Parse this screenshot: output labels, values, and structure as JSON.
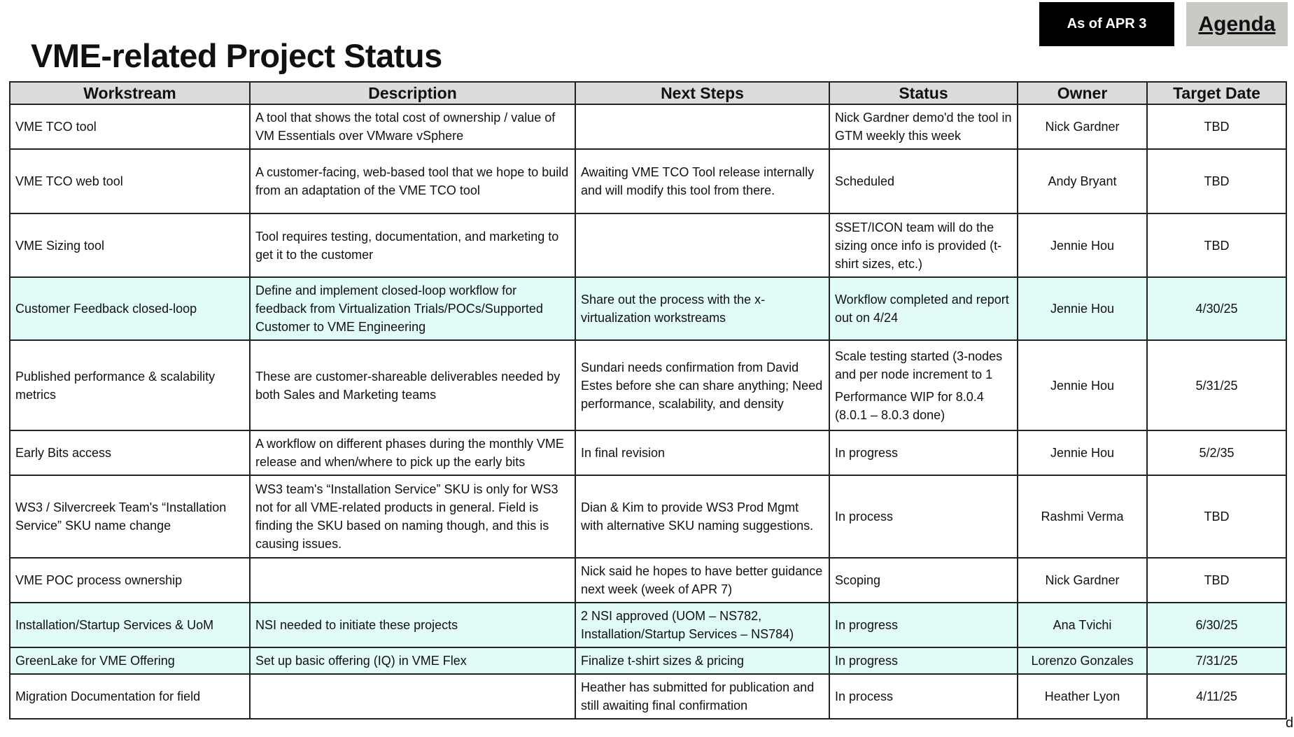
{
  "title": "VME-related Project Status",
  "as_of": "As of APR 3",
  "agenda_link": "Agenda",
  "columns": [
    "Workstream",
    "Description",
    "Next Steps",
    "Status",
    "Owner",
    "Target Date"
  ],
  "highlight_color": "#e0fbf8",
  "rows": [
    {
      "workstream": "VME TCO tool",
      "description": "A tool that shows the total cost of ownership / value of VM Essentials over VMware vSphere",
      "next_steps": "",
      "status": "Nick Gardner demo'd the tool in GTM weekly this week",
      "status2": "",
      "owner": "Nick Gardner",
      "target": "TBD",
      "highlight": false
    },
    {
      "workstream": "VME TCO web tool",
      "description": "A customer-facing, web-based tool that we hope to build from an adaptation of the VME TCO tool",
      "next_steps": "Awaiting VME TCO Tool release internally and will modify this tool from there.",
      "status": "Scheduled",
      "status2": "",
      "owner": "Andy Bryant",
      "target": "TBD",
      "highlight": false
    },
    {
      "workstream": "VME Sizing tool",
      "description": "Tool requires testing, documentation, and marketing to get it to the customer",
      "next_steps": "",
      "status": "SSET/ICON team will do the sizing once info is provided (t-shirt sizes, etc.)",
      "status2": "",
      "owner": "Jennie Hou",
      "target": "TBD",
      "highlight": false
    },
    {
      "workstream": "Customer Feedback closed-loop",
      "description": "Define and implement closed-loop workflow for feedback from Virtualization Trials/POCs/Supported Customer to VME Engineering",
      "next_steps": "Share out the process with the x-virtualization workstreams",
      "status": "Workflow completed and report out on 4/24",
      "status2": "",
      "owner": "Jennie Hou",
      "target": "4/30/25",
      "highlight": true
    },
    {
      "workstream": "Published performance & scalability metrics",
      "description": "These are customer-shareable deliverables needed by both Sales and Marketing teams",
      "next_steps": "Sundari needs confirmation from David Estes before she can share anything; Need performance, scalability, and density",
      "status": "Scale testing started (3-nodes and per node increment to 1",
      "status2": "Performance WIP for 8.0.4 (8.0.1 – 8.0.3 done)",
      "owner": "Jennie Hou",
      "target": "5/31/25",
      "highlight": false
    },
    {
      "workstream": "Early Bits access",
      "description": "A workflow on different phases during the monthly VME release and when/where to pick up the early bits",
      "next_steps": "In final revision",
      "status": "In progress",
      "status2": "",
      "owner": "Jennie Hou",
      "target": "5/2/35",
      "highlight": false
    },
    {
      "workstream": "WS3 / Silvercreek Team's “Installation Service” SKU name change",
      "description": "WS3 team's “Installation Service” SKU is only for WS3 not for all VME-related products in general. Field is finding the SKU based on naming though, and this is causing issues.",
      "next_steps": "Dian & Kim to provide WS3 Prod Mgmt with alternative SKU naming suggestions.",
      "status": "In process",
      "status2": "",
      "owner": "Rashmi Verma",
      "target": "TBD",
      "highlight": false
    },
    {
      "workstream": "VME POC process ownership",
      "description": "",
      "next_steps": "Nick said he hopes to have better guidance next week (week of APR 7)",
      "status": "Scoping",
      "status2": "",
      "owner": "Nick Gardner",
      "target": "TBD",
      "highlight": false
    },
    {
      "workstream": "Installation/Startup Services & UoM",
      "description": "NSI needed to initiate these projects",
      "next_steps": "2 NSI approved (UOM – NS782, Installation/Startup Services – NS784)",
      "status": "In progress",
      "status2": "",
      "owner": "Ana Tvichi",
      "target": "6/30/25",
      "highlight": true
    },
    {
      "workstream": "GreenLake for VME Offering",
      "description": "Set up basic offering (IQ) in VME Flex",
      "next_steps": "Finalize t-shirt sizes & pricing",
      "status": "In progress",
      "status2": "",
      "owner": "Lorenzo Gonzales",
      "target": "7/31/25",
      "highlight": true
    },
    {
      "workstream": "Migration Documentation for field",
      "description": "",
      "next_steps": "Heather has submitted for publication and still awaiting final confirmation",
      "status": "In process",
      "status2": "",
      "owner": "Heather Lyon",
      "target": "4/11/25",
      "highlight": false
    }
  ],
  "stray_char": "d"
}
